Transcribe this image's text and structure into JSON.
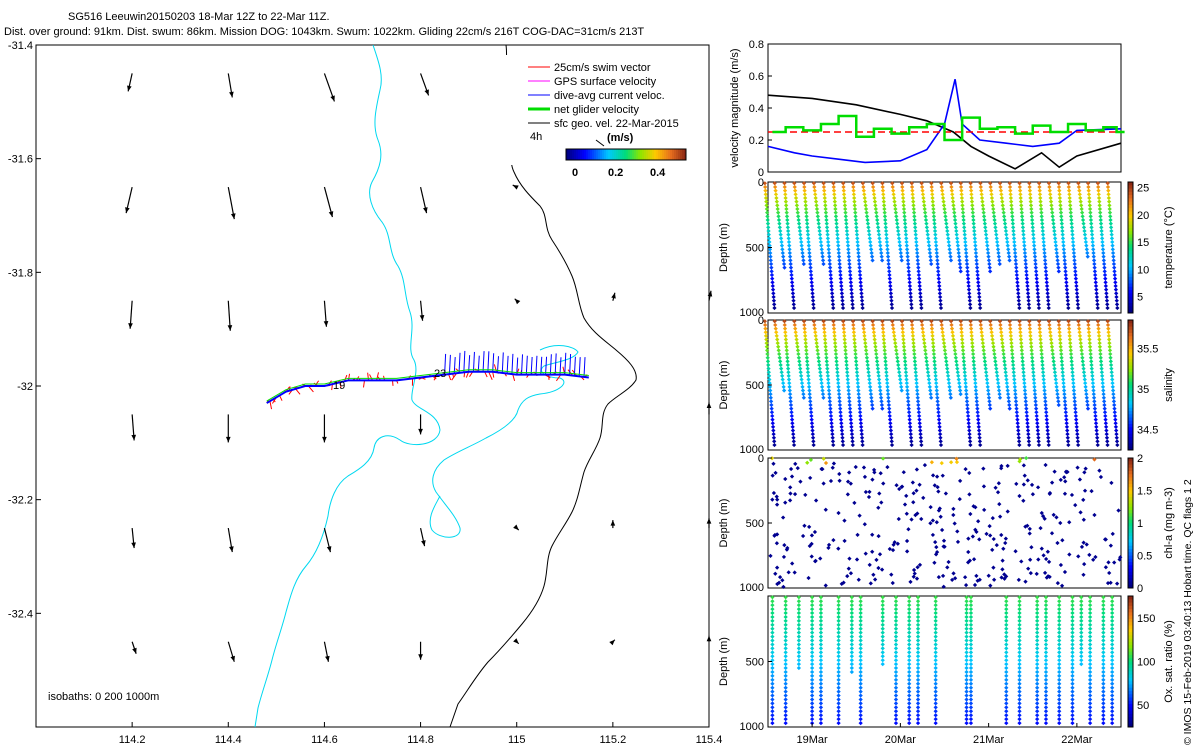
{
  "header": {
    "line1": "SG516 Leeuwin20150203 18-Mar 12Z to 22-Mar 11Z.",
    "line2": "Dist. over ground: 91km. Dist. swum: 86km. Mission DOG: 1043km. Swum: 1022km. Gliding 22cm/s 216T COG-DAC=31cm/s 213T"
  },
  "copyright": "© IMOS 15-Feb-2019 03:40:13 Hobart time. QC flags 1  2",
  "colors": {
    "coast": "#000000",
    "isobath": "#00d8f0",
    "swim": "#ff0000",
    "gps": "#ff00ff",
    "dac": "#0000ff",
    "net": "#00dd00",
    "sfc": "#000000"
  },
  "chart_data": [
    {
      "type": "map",
      "xlim": [
        114.0,
        115.4
      ],
      "ylim": [
        -32.6,
        -31.4
      ],
      "x_ticks": [
        "114.2",
        "114.4",
        "114.6",
        "114.8",
        "115",
        "115.2",
        "115.4"
      ],
      "y_ticks": [
        "-31.4",
        "-31.6",
        "-31.8",
        "-32",
        "-32.2",
        "-32.4"
      ],
      "legend": [
        {
          "label": "25cm/s swim vector",
          "color": "#ff0000"
        },
        {
          "label": "GPS surface velocity",
          "color": "#ff00ff"
        },
        {
          "label": "dive-avg current veloc.",
          "color": "#0000ff"
        },
        {
          "label": "net glider velocity",
          "color": "#00dd00"
        },
        {
          "label": "sfc geo. vel. 22-Mar-2015",
          "color": "#000000"
        }
      ],
      "legend_scale_label": "4h",
      "colorbar": {
        "unit": "(m/s)",
        "ticks": [
          "0",
          "0.2",
          "0.4"
        ],
        "range": [
          0,
          0.5
        ]
      },
      "isobaths_label": "isobaths: 0   200   1000m",
      "track_labels": [
        "19",
        "23"
      ],
      "track": [
        [
          114.48,
          -32.03
        ],
        [
          114.52,
          -32.01
        ],
        [
          114.56,
          -32.0
        ],
        [
          114.6,
          -32.0
        ],
        [
          114.65,
          -31.99
        ],
        [
          114.7,
          -31.99
        ],
        [
          114.75,
          -31.99
        ],
        [
          114.8,
          -31.985
        ],
        [
          114.85,
          -31.98
        ],
        [
          114.9,
          -31.975
        ],
        [
          114.95,
          -31.975
        ],
        [
          115.0,
          -31.98
        ],
        [
          115.05,
          -31.98
        ],
        [
          115.1,
          -31.98
        ],
        [
          115.15,
          -31.985
        ]
      ],
      "sfc_vectors": [
        {
          "lon": 114.2,
          "lat": -31.45,
          "u": -0.02,
          "v": -0.09
        },
        {
          "lon": 114.4,
          "lat": -31.45,
          "u": 0.02,
          "v": -0.12
        },
        {
          "lon": 114.6,
          "lat": -31.45,
          "u": 0.05,
          "v": -0.14
        },
        {
          "lon": 114.8,
          "lat": -31.45,
          "u": 0.04,
          "v": -0.11
        },
        {
          "lon": 114.2,
          "lat": -31.65,
          "u": -0.03,
          "v": -0.13
        },
        {
          "lon": 114.4,
          "lat": -31.65,
          "u": 0.03,
          "v": -0.16
        },
        {
          "lon": 114.6,
          "lat": -31.65,
          "u": 0.04,
          "v": -0.15
        },
        {
          "lon": 114.8,
          "lat": -31.65,
          "u": 0.03,
          "v": -0.13
        },
        {
          "lon": 115.0,
          "lat": -31.65,
          "u": -0.02,
          "v": 0.01
        },
        {
          "lon": 114.2,
          "lat": -31.85,
          "u": -0.01,
          "v": -0.14
        },
        {
          "lon": 114.4,
          "lat": -31.85,
          "u": 0.01,
          "v": -0.15
        },
        {
          "lon": 114.6,
          "lat": -31.85,
          "u": 0.01,
          "v": -0.13
        },
        {
          "lon": 114.8,
          "lat": -31.85,
          "u": 0.01,
          "v": -0.1
        },
        {
          "lon": 115.0,
          "lat": -31.85,
          "u": -0.01,
          "v": 0.01
        },
        {
          "lon": 115.2,
          "lat": -31.85,
          "u": 0.01,
          "v": 0.04
        },
        {
          "lon": 115.4,
          "lat": -31.85,
          "u": 0.01,
          "v": 0.05
        },
        {
          "lon": 114.2,
          "lat": -32.05,
          "u": 0.01,
          "v": -0.13
        },
        {
          "lon": 114.4,
          "lat": -32.05,
          "u": 0.0,
          "v": -0.14
        },
        {
          "lon": 114.6,
          "lat": -32.05,
          "u": 0.0,
          "v": -0.14
        },
        {
          "lon": 114.8,
          "lat": -32.05,
          "u": 0.0,
          "v": -0.1
        },
        {
          "lon": 115.4,
          "lat": -32.05,
          "u": 0.0,
          "v": 0.06
        },
        {
          "lon": 114.2,
          "lat": -32.25,
          "u": 0.01,
          "v": -0.1
        },
        {
          "lon": 114.4,
          "lat": -32.25,
          "u": 0.02,
          "v": -0.12
        },
        {
          "lon": 114.6,
          "lat": -32.25,
          "u": 0.03,
          "v": -0.12
        },
        {
          "lon": 114.8,
          "lat": -32.25,
          "u": 0.02,
          "v": -0.09
        },
        {
          "lon": 115.0,
          "lat": -32.25,
          "u": 0.01,
          "v": -0.01
        },
        {
          "lon": 115.2,
          "lat": -32.25,
          "u": 0.0,
          "v": 0.04
        },
        {
          "lon": 115.4,
          "lat": -32.25,
          "u": 0.0,
          "v": 0.05
        },
        {
          "lon": 114.2,
          "lat": -32.45,
          "u": 0.02,
          "v": -0.06
        },
        {
          "lon": 114.4,
          "lat": -32.45,
          "u": 0.03,
          "v": -0.1
        },
        {
          "lon": 114.6,
          "lat": -32.45,
          "u": 0.02,
          "v": -0.1
        },
        {
          "lon": 114.8,
          "lat": -32.45,
          "u": 0.0,
          "v": -0.09
        },
        {
          "lon": 115.0,
          "lat": -32.45,
          "u": 0.01,
          "v": -0.01
        },
        {
          "lon": 115.2,
          "lat": -32.45,
          "u": 0.01,
          "v": 0.01
        },
        {
          "lon": 115.4,
          "lat": -32.45,
          "u": 0.0,
          "v": 0.03
        }
      ]
    },
    {
      "type": "line",
      "ylabel": "velocity magnitude (m/s)",
      "xlim": [
        18.5,
        22.5
      ],
      "ylim": [
        0,
        0.8
      ],
      "y_ticks": [
        "0",
        "0.2",
        "0.4",
        "0.6",
        "0.8"
      ],
      "series": [
        {
          "color": "#000000",
          "x": [
            18.5,
            19.0,
            19.5,
            20.0,
            20.3,
            20.6,
            20.8,
            21.0,
            21.3,
            21.6,
            21.8,
            22.0,
            22.5
          ],
          "y": [
            0.48,
            0.46,
            0.42,
            0.36,
            0.32,
            0.25,
            0.16,
            0.1,
            0.02,
            0.12,
            0.03,
            0.1,
            0.18
          ]
        },
        {
          "color": "#0000ff",
          "x": [
            18.5,
            18.8,
            19.0,
            19.3,
            19.6,
            20.0,
            20.3,
            20.5,
            20.62,
            20.7,
            20.9,
            21.2,
            21.5,
            21.8,
            22.0,
            22.5
          ],
          "y": [
            0.16,
            0.12,
            0.1,
            0.08,
            0.06,
            0.07,
            0.14,
            0.3,
            0.58,
            0.3,
            0.2,
            0.18,
            0.16,
            0.18,
            0.26,
            0.27
          ]
        },
        {
          "color": "#ff0000",
          "x": [
            18.5,
            22.5
          ],
          "y": [
            0.25,
            0.25
          ]
        },
        {
          "color": "#00dd00",
          "x": [
            18.55,
            18.7,
            18.9,
            19.1,
            19.3,
            19.5,
            19.7,
            19.9,
            20.1,
            20.3,
            20.5,
            20.7,
            20.9,
            21.1,
            21.3,
            21.5,
            21.7,
            21.9,
            22.1,
            22.3,
            22.45
          ],
          "y": [
            0.25,
            0.28,
            0.26,
            0.3,
            0.35,
            0.22,
            0.27,
            0.24,
            0.28,
            0.3,
            0.2,
            0.34,
            0.27,
            0.28,
            0.24,
            0.29,
            0.25,
            0.3,
            0.26,
            0.28,
            0.25
          ]
        }
      ]
    },
    {
      "type": "scatter-section",
      "ylabel": "Depth (m)",
      "cblabel": "temperature (°C)",
      "cb_ticks": [
        "5",
        "10",
        "15",
        "20",
        "25"
      ],
      "cb_range": [
        2,
        26
      ],
      "y_ticks": [
        "0",
        "500",
        "1000"
      ],
      "xlim": [
        18.5,
        22.5
      ],
      "ylim": [
        0,
        1000
      ]
    },
    {
      "type": "scatter-section",
      "ylabel": "Depth (m)",
      "cblabel": "salinity",
      "cb_ticks": [
        "34.5",
        "35",
        "35.5"
      ],
      "cb_range": [
        34.25,
        35.85
      ],
      "y_ticks": [
        "0",
        "500",
        "1000"
      ],
      "xlim": [
        18.5,
        22.5
      ],
      "ylim": [
        0,
        1000
      ]
    },
    {
      "type": "scatter-section",
      "ylabel": "Depth (m)",
      "cblabel": "chl-a (mg m-3)",
      "cb_ticks": [
        "0",
        "0.5",
        "1",
        "1.5",
        "2"
      ],
      "cb_range": [
        0,
        2
      ],
      "y_ticks": [
        "0",
        "500",
        "1000"
      ],
      "xlim": [
        18.5,
        22.5
      ],
      "ylim": [
        0,
        1000
      ]
    },
    {
      "type": "scatter-section",
      "ylabel": "Depth (m)",
      "cblabel": "Ox. sat. ratio (%)",
      "cb_ticks": [
        "50",
        "100",
        "150"
      ],
      "cb_range": [
        25,
        175
      ],
      "y_ticks": [
        "500",
        "1000"
      ],
      "x_ticks": [
        "19Mar",
        "20Mar",
        "21Mar",
        "22Mar"
      ],
      "xlim": [
        18.5,
        22.5
      ],
      "ylim": [
        0,
        1000
      ]
    }
  ]
}
